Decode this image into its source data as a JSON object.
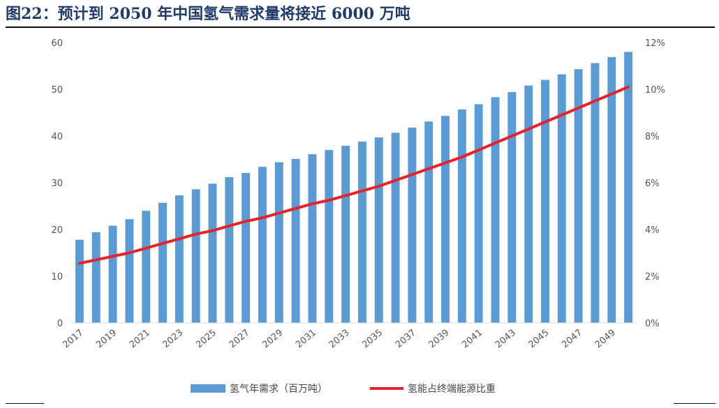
{
  "figure": {
    "title": "图22：预计到 2050 年中国氢气需求量将接近 6000 万吨"
  },
  "colors": {
    "bar": "#5b9bd5",
    "line": "#e8212a",
    "text": "#555555",
    "axis": "#d9d9d9"
  },
  "chart_data": {
    "type": "bar",
    "categories": [
      "2017",
      "2018",
      "2019",
      "2020",
      "2021",
      "2022",
      "2023",
      "2024",
      "2025",
      "2026",
      "2027",
      "2028",
      "2029",
      "2030",
      "2031",
      "2032",
      "2033",
      "2034",
      "2035",
      "2036",
      "2037",
      "2038",
      "2039",
      "2040",
      "2041",
      "2042",
      "2043",
      "2044",
      "2045",
      "2046",
      "2047",
      "2048",
      "2049",
      "2050"
    ],
    "x_tick_labels": [
      "2017",
      "2019",
      "2021",
      "2023",
      "2025",
      "2027",
      "2029",
      "2031",
      "2033",
      "2035",
      "2037",
      "2039",
      "2041",
      "2043",
      "2045",
      "2047",
      "2049"
    ],
    "series": [
      {
        "name": "氢气年需求（百万吨）",
        "axis": "left",
        "kind": "bar",
        "values": [
          17.8,
          19.4,
          20.8,
          22.2,
          24.0,
          25.7,
          27.3,
          28.6,
          29.8,
          31.2,
          32.1,
          33.4,
          34.4,
          35.1,
          36.1,
          37.0,
          37.9,
          38.8,
          39.7,
          40.7,
          41.8,
          43.1,
          44.3,
          45.7,
          46.8,
          48.3,
          49.4,
          50.8,
          52.0,
          53.2,
          54.3,
          55.6,
          56.9,
          58.0
        ]
      },
      {
        "name": "氢能占终端能源比重",
        "axis": "right",
        "kind": "line",
        "values": [
          2.55,
          2.7,
          2.85,
          3.0,
          3.2,
          3.4,
          3.6,
          3.8,
          3.95,
          4.15,
          4.35,
          4.5,
          4.7,
          4.9,
          5.1,
          5.25,
          5.45,
          5.65,
          5.85,
          6.1,
          6.35,
          6.6,
          6.85,
          7.1,
          7.4,
          7.7,
          8.0,
          8.3,
          8.6,
          8.9,
          9.2,
          9.5,
          9.8,
          10.1
        ]
      }
    ],
    "y_left": {
      "min": 0,
      "max": 60,
      "ticks": [
        "0",
        "10",
        "20",
        "30",
        "40",
        "50",
        "60"
      ]
    },
    "y_right": {
      "min": 0,
      "max": 12,
      "ticks": [
        "0%",
        "2%",
        "4%",
        "6%",
        "8%",
        "10%",
        "12%"
      ]
    },
    "grid": false,
    "legend_position": "bottom-center"
  }
}
